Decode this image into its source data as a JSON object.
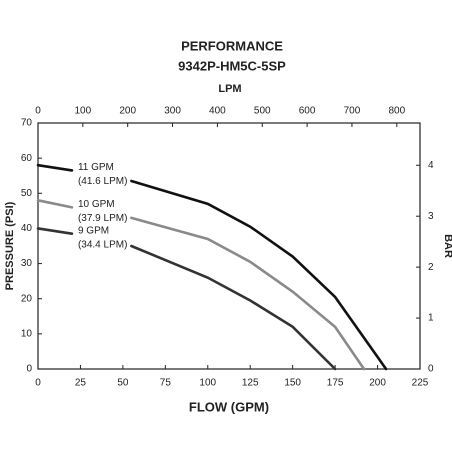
{
  "chart_data": {
    "type": "line",
    "title": "PERFORMANCE",
    "subtitle": "9342P-HM5C-5SP",
    "xlabel": "FLOW (GPM)",
    "ylabel": "PRESSURE (PSI)",
    "x2label": "LPM",
    "y2label": "BAR",
    "xlim": [
      0,
      225
    ],
    "xticks": [
      0,
      25,
      50,
      75,
      100,
      125,
      150,
      175,
      200,
      225
    ],
    "ylim": [
      0,
      70
    ],
    "yticks": [
      0,
      10,
      20,
      30,
      40,
      50,
      60,
      70
    ],
    "x2lim": [
      0,
      851.7
    ],
    "x2ticks": [
      0,
      100,
      200,
      300,
      400,
      500,
      600,
      700,
      800
    ],
    "y2lim": [
      0,
      4.83
    ],
    "y2ticks": [
      0,
      1,
      2,
      3,
      4
    ],
    "series": [
      {
        "name": "11 GPM",
        "note": "(41.6 LPM)",
        "color": "#111111",
        "x": [
          0,
          20,
          55,
          100,
          125,
          150,
          175,
          205
        ],
        "values": [
          58,
          56.5,
          53.5,
          47,
          40.5,
          32,
          20.5,
          0
        ]
      },
      {
        "name": "10 GPM",
        "note": "(37.9 LPM)",
        "color": "#8a8a8a",
        "x": [
          0,
          20,
          55,
          100,
          125,
          150,
          175,
          192
        ],
        "values": [
          48,
          46,
          43,
          37,
          30.5,
          22,
          12,
          0
        ]
      },
      {
        "name": "9 GPM",
        "note": "(34.4 LPM)",
        "color": "#333333",
        "x": [
          0,
          20,
          55,
          100,
          125,
          150,
          175
        ],
        "values": [
          40,
          38.5,
          35,
          26,
          19.5,
          12,
          0
        ]
      }
    ]
  }
}
